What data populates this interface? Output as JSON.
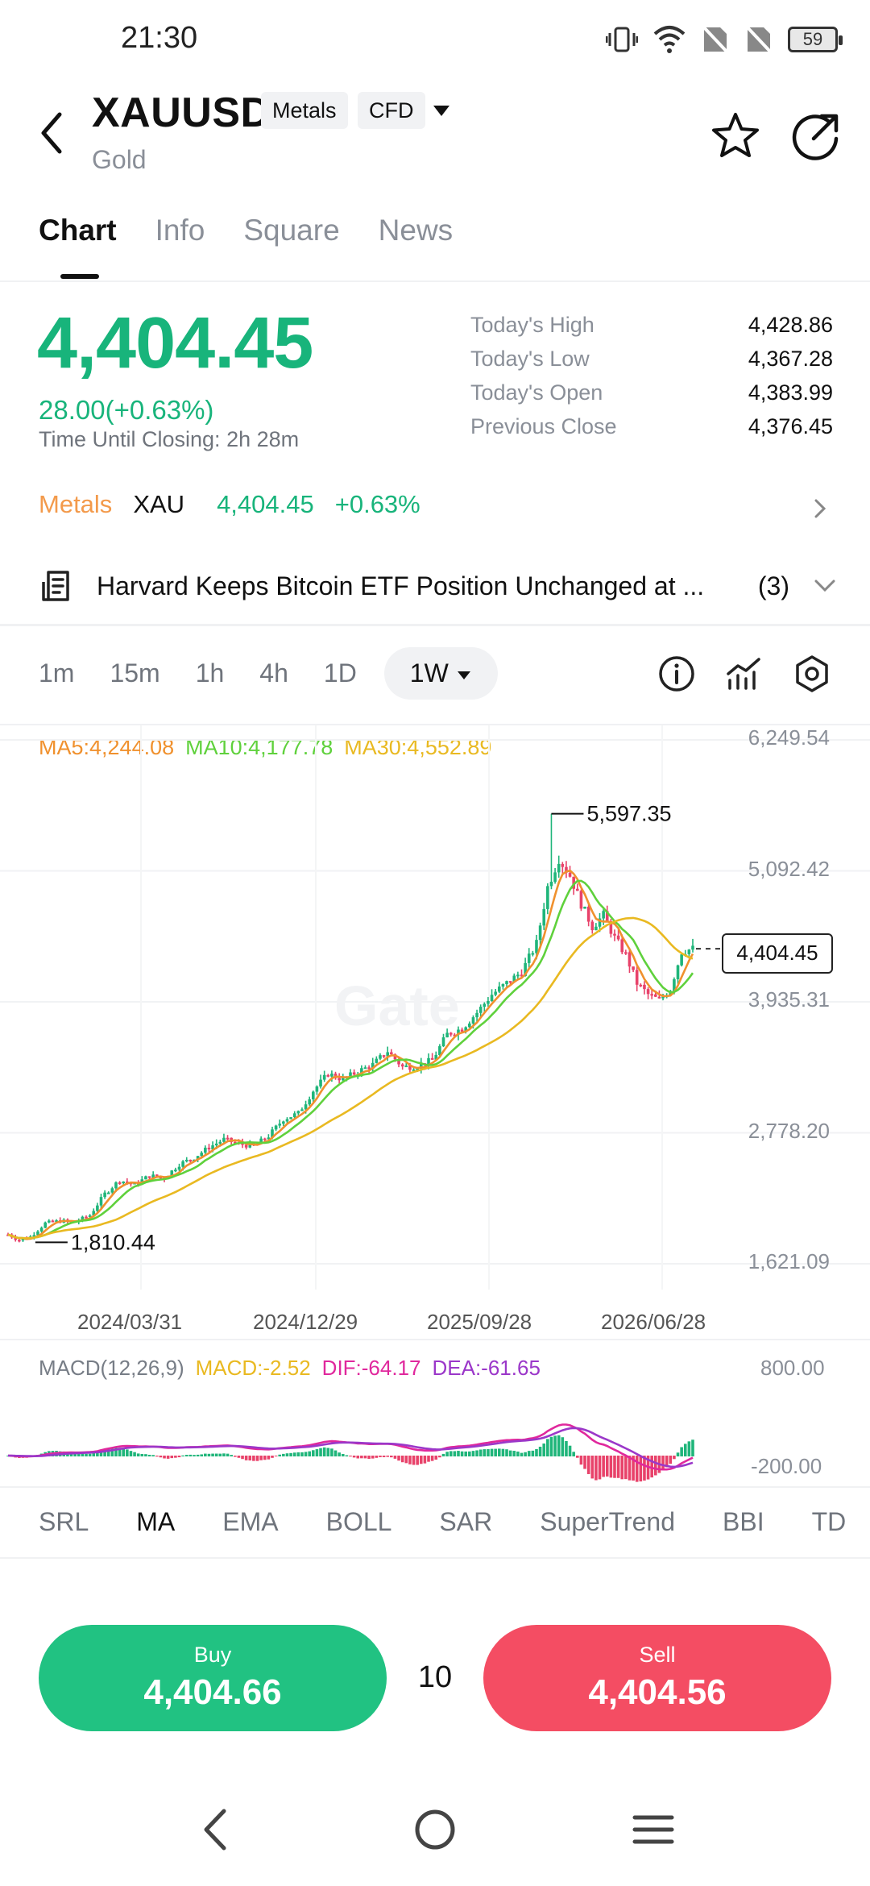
{
  "status_bar": {
    "time": "21:30",
    "battery": "59"
  },
  "header": {
    "symbol": "XAUUSD",
    "tags": [
      "Metals",
      "CFD"
    ],
    "subname": "Gold"
  },
  "tabs": [
    {
      "label": "Chart",
      "active": true
    },
    {
      "label": "Info",
      "active": false
    },
    {
      "label": "Square",
      "active": false
    },
    {
      "label": "News",
      "active": false
    }
  ],
  "quote": {
    "price": "4,404.45",
    "change": "28.00(+0.63%)",
    "closing_label": "Time Until Closing:",
    "closing_value": "2h 28m",
    "stats": [
      {
        "label": "Today's High",
        "value": "4,428.86"
      },
      {
        "label": "Today's Low",
        "value": "4,367.28"
      },
      {
        "label": "Today's Open",
        "value": "4,383.99"
      },
      {
        "label": "Previous Close",
        "value": "4,376.45"
      }
    ]
  },
  "sector_row": {
    "sector": "Metals",
    "ticker": "XAU",
    "price": "4,404.45",
    "change": "+0.63%"
  },
  "news": {
    "headline": "Harvard Keeps Bitcoin ETF Position Unchanged at ...",
    "count": "(3)"
  },
  "intervals": [
    {
      "label": "1m",
      "active": false
    },
    {
      "label": "15m",
      "active": false
    },
    {
      "label": "1h",
      "active": false
    },
    {
      "label": "4h",
      "active": false
    },
    {
      "label": "1D",
      "active": false
    },
    {
      "label": "1W",
      "active": true
    }
  ],
  "chart_data": {
    "type": "candlestick",
    "ma_legend": [
      {
        "label": "MA5:4,244.08",
        "color": "#f0912e"
      },
      {
        "label": "MA10:4,177.78",
        "color": "#5fd13c"
      },
      {
        "label": "MA30:4,552.89",
        "color": "#e9b921"
      }
    ],
    "y_ticks": [
      "6,249.54",
      "5,092.42",
      "3,935.31",
      "2,778.20",
      "1,621.09"
    ],
    "y_values": [
      6249.54,
      5092.42,
      3935.31,
      2778.2,
      1621.09
    ],
    "x_ticks": [
      "2024/03/31",
      "2024/12/29",
      "2025/09/28",
      "2026/06/28"
    ],
    "high_label": "5,597.35",
    "high_value": 5597.35,
    "low_label": "1,810.44",
    "low_value": 1810.44,
    "last_price": "4,404.45",
    "last_value": 4404.45,
    "colors": {
      "up": "#1fb57a",
      "down": "#e8426a"
    },
    "price_path": [
      [
        0,
        1880
      ],
      [
        3,
        1830
      ],
      [
        6,
        1860
      ],
      [
        10,
        1980
      ],
      [
        14,
        2000
      ],
      [
        18,
        1990
      ],
      [
        22,
        2050
      ],
      [
        26,
        2240
      ],
      [
        30,
        2360
      ],
      [
        34,
        2320
      ],
      [
        38,
        2400
      ],
      [
        42,
        2380
      ],
      [
        46,
        2500
      ],
      [
        50,
        2560
      ],
      [
        54,
        2650
      ],
      [
        58,
        2720
      ],
      [
        62,
        2680
      ],
      [
        66,
        2660
      ],
      [
        70,
        2750
      ],
      [
        74,
        2900
      ],
      [
        78,
        2950
      ],
      [
        82,
        3150
      ],
      [
        86,
        3300
      ],
      [
        90,
        3250
      ],
      [
        94,
        3320
      ],
      [
        98,
        3380
      ],
      [
        102,
        3500
      ],
      [
        106,
        3360
      ],
      [
        110,
        3370
      ],
      [
        114,
        3420
      ],
      [
        118,
        3650
      ],
      [
        122,
        3700
      ],
      [
        126,
        3840
      ],
      [
        130,
        4000
      ],
      [
        134,
        4100
      ],
      [
        138,
        4200
      ],
      [
        142,
        4450
      ],
      [
        145,
        4950
      ],
      [
        148,
        5200
      ],
      [
        151,
        5050
      ],
      [
        154,
        4800
      ],
      [
        157,
        4600
      ],
      [
        160,
        4700
      ],
      [
        163,
        4500
      ],
      [
        166,
        4350
      ],
      [
        169,
        4100
      ],
      [
        172,
        4000
      ],
      [
        175,
        3950
      ],
      [
        178,
        4050
      ],
      [
        181,
        4380
      ],
      [
        184,
        4404
      ]
    ],
    "macd": {
      "legend": [
        {
          "label": "MACD(12,26,9)",
          "color": "#777d86"
        },
        {
          "label": "MACD:-2.52",
          "color": "#e9b921"
        },
        {
          "label": "DIF:-64.17",
          "color": "#e0289d"
        },
        {
          "label": "DEA:-61.65",
          "color": "#9b37c9"
        }
      ],
      "y_ticks": [
        "800.00",
        "-200.00"
      ]
    }
  },
  "indicators": [
    {
      "label": "SRL",
      "active": false
    },
    {
      "label": "MA",
      "active": true
    },
    {
      "label": "EMA",
      "active": false
    },
    {
      "label": "BOLL",
      "active": false
    },
    {
      "label": "SAR",
      "active": false
    },
    {
      "label": "SuperTrend",
      "active": false
    },
    {
      "label": "BBI",
      "active": false
    },
    {
      "label": "TD",
      "active": false
    }
  ],
  "trade": {
    "buy_label": "Buy",
    "buy_price": "4,404.66",
    "quantity": "10",
    "sell_label": "Sell",
    "sell_price": "4,404.56"
  },
  "watermark": "Gate"
}
